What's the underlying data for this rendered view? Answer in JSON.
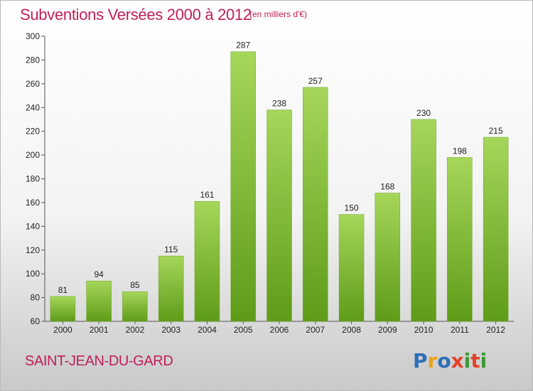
{
  "header": {
    "title": "Subventions Versées 2000 à 2012",
    "unit": "(en milliers d'€)"
  },
  "footer": {
    "location": "SAINT-JEAN-DU-GARD",
    "brand": "Proxiti"
  },
  "colors": {
    "title": "#c01e58",
    "bar_top": "#a6d65a",
    "bar_bottom": "#5e9c18",
    "logo_letters": [
      "#2e6fb7",
      "#e9a21b",
      "#2e6fb7",
      "#e2422b",
      "#3a9a32",
      "#e2422b",
      "#3a9a32"
    ]
  },
  "chart_data": {
    "type": "bar",
    "title": "Subventions Versées 2000 à 2012",
    "subtitle": "(en milliers d'€)",
    "xlabel": "",
    "ylabel": "",
    "categories": [
      "2000",
      "2001",
      "2002",
      "2003",
      "2004",
      "2005",
      "2006",
      "2007",
      "2008",
      "2009",
      "2010",
      "2011",
      "2012"
    ],
    "values": [
      81,
      94,
      85,
      115,
      161,
      287,
      238,
      257,
      150,
      168,
      230,
      198,
      215
    ],
    "ylim": [
      60,
      300
    ],
    "yticks": [
      60,
      80,
      100,
      120,
      140,
      160,
      180,
      200,
      220,
      240,
      260,
      280,
      300
    ],
    "grid": false,
    "data_labels": true
  }
}
